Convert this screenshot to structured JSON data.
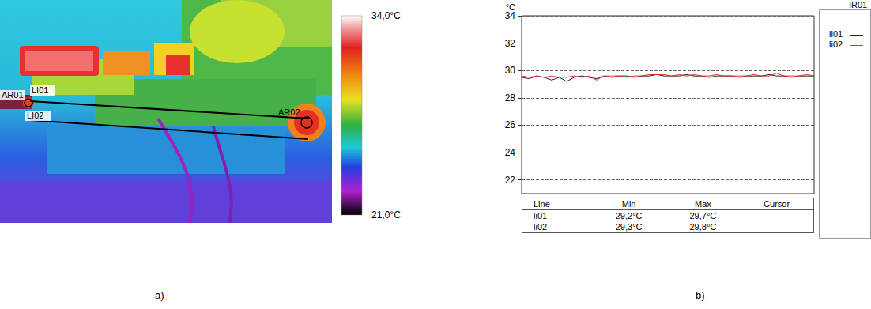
{
  "thermal_image": {
    "caption": "a)",
    "colorbar": {
      "range": [
        21,
        34
      ],
      "ticks": [
        {
          "value": 34,
          "label": "34,0°C"
        },
        {
          "value": 21,
          "label": "21,0°C"
        }
      ]
    },
    "markers": [
      "AR01",
      "AR02"
    ],
    "lines": [
      "LI01",
      "LI02"
    ]
  },
  "chart_data": {
    "type": "line",
    "caption": "b)",
    "title": "IR01",
    "y_label": "°C",
    "x": [
      0,
      1,
      2,
      3,
      4,
      5,
      6,
      7,
      8,
      9,
      10,
      11,
      12,
      13,
      14,
      15,
      16,
      17,
      18,
      19,
      20,
      21,
      22,
      23,
      24,
      25,
      26,
      27,
      28,
      29,
      30,
      31,
      32,
      33,
      34,
      35,
      36,
      37,
      38,
      39
    ],
    "xlim": [
      0,
      39
    ],
    "ylim": [
      21,
      34
    ],
    "yticks": [
      22,
      24,
      26,
      28,
      30,
      32,
      34
    ],
    "grid": true,
    "legend": "upper right",
    "tick_labels": "y",
    "series": [
      {
        "name": "li01",
        "color": "#222222",
        "values": [
          29.5,
          29.4,
          29.6,
          29.5,
          29.3,
          29.5,
          29.2,
          29.5,
          29.6,
          29.5,
          29.4,
          29.6,
          29.5,
          29.6,
          29.6,
          29.5,
          29.6,
          29.6,
          29.7,
          29.6,
          29.6,
          29.6,
          29.7,
          29.6,
          29.6,
          29.5,
          29.6,
          29.6,
          29.6,
          29.5,
          29.6,
          29.6,
          29.6,
          29.7,
          29.6,
          29.6,
          29.5,
          29.6,
          29.6,
          29.6
        ]
      },
      {
        "name": "li02",
        "color": "#e03030",
        "values": [
          29.6,
          29.5,
          29.6,
          29.5,
          29.6,
          29.5,
          29.5,
          29.6,
          29.5,
          29.6,
          29.3,
          29.6,
          29.6,
          29.6,
          29.5,
          29.6,
          29.6,
          29.7,
          29.7,
          29.7,
          29.6,
          29.7,
          29.6,
          29.7,
          29.6,
          29.6,
          29.7,
          29.6,
          29.6,
          29.6,
          29.6,
          29.7,
          29.6,
          29.6,
          29.8,
          29.6,
          29.6,
          29.6,
          29.7,
          29.6
        ]
      }
    ],
    "table": {
      "header": [
        "Line",
        "Min",
        "Max",
        "Cursor"
      ],
      "rows": [
        [
          "li01",
          "29,2°C",
          "29,7°C",
          "-"
        ],
        [
          "li02",
          "29,3°C",
          "29,8°C",
          "-"
        ]
      ]
    }
  }
}
